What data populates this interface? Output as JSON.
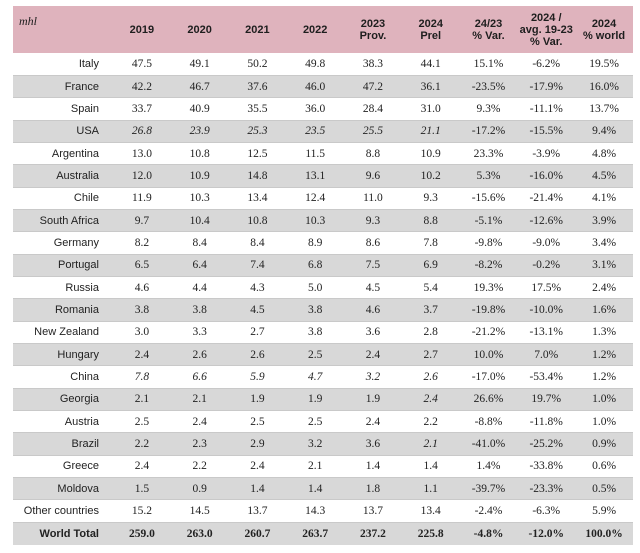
{
  "unit_label": "mhl",
  "headers": [
    "2019",
    "2020",
    "2021",
    "2022",
    "2023\nProv.",
    "2024\nPrel",
    "24/23\n% Var.",
    "2024 /\navg. 19-23\n% Var.",
    "2024\n% world"
  ],
  "rows": [
    {
      "country": "Italy",
      "values": [
        "47.5",
        "49.1",
        "50.2",
        "49.8",
        "38.3",
        "44.1",
        "15.1%",
        "-6.2%",
        "19.5%"
      ],
      "italic": []
    },
    {
      "country": "France",
      "values": [
        "42.2",
        "46.7",
        "37.6",
        "46.0",
        "47.2",
        "36.1",
        "-23.5%",
        "-17.9%",
        "16.0%"
      ],
      "italic": []
    },
    {
      "country": "Spain",
      "values": [
        "33.7",
        "40.9",
        "35.5",
        "36.0",
        "28.4",
        "31.0",
        "9.3%",
        "-11.1%",
        "13.7%"
      ],
      "italic": []
    },
    {
      "country": "USA",
      "values": [
        "26.8",
        "23.9",
        "25.3",
        "23.5",
        "25.5",
        "21.1",
        "-17.2%",
        "-15.5%",
        "9.4%"
      ],
      "italic": [
        0,
        1,
        2,
        3,
        4,
        5
      ]
    },
    {
      "country": "Argentina",
      "values": [
        "13.0",
        "10.8",
        "12.5",
        "11.5",
        "8.8",
        "10.9",
        "23.3%",
        "-3.9%",
        "4.8%"
      ],
      "italic": []
    },
    {
      "country": "Australia",
      "values": [
        "12.0",
        "10.9",
        "14.8",
        "13.1",
        "9.6",
        "10.2",
        "5.3%",
        "-16.0%",
        "4.5%"
      ],
      "italic": []
    },
    {
      "country": "Chile",
      "values": [
        "11.9",
        "10.3",
        "13.4",
        "12.4",
        "11.0",
        "9.3",
        "-15.6%",
        "-21.4%",
        "4.1%"
      ],
      "italic": []
    },
    {
      "country": "South Africa",
      "values": [
        "9.7",
        "10.4",
        "10.8",
        "10.3",
        "9.3",
        "8.8",
        "-5.1%",
        "-12.6%",
        "3.9%"
      ],
      "italic": []
    },
    {
      "country": "Germany",
      "values": [
        "8.2",
        "8.4",
        "8.4",
        "8.9",
        "8.6",
        "7.8",
        "-9.8%",
        "-9.0%",
        "3.4%"
      ],
      "italic": []
    },
    {
      "country": "Portugal",
      "values": [
        "6.5",
        "6.4",
        "7.4",
        "6.8",
        "7.5",
        "6.9",
        "-8.2%",
        "-0.2%",
        "3.1%"
      ],
      "italic": []
    },
    {
      "country": "Russia",
      "values": [
        "4.6",
        "4.4",
        "4.3",
        "5.0",
        "4.5",
        "5.4",
        "19.3%",
        "17.5%",
        "2.4%"
      ],
      "italic": []
    },
    {
      "country": "Romania",
      "values": [
        "3.8",
        "3.8",
        "4.5",
        "3.8",
        "4.6",
        "3.7",
        "-19.8%",
        "-10.0%",
        "1.6%"
      ],
      "italic": []
    },
    {
      "country": "New Zealand",
      "values": [
        "3.0",
        "3.3",
        "2.7",
        "3.8",
        "3.6",
        "2.8",
        "-21.2%",
        "-13.1%",
        "1.3%"
      ],
      "italic": []
    },
    {
      "country": "Hungary",
      "values": [
        "2.4",
        "2.6",
        "2.6",
        "2.5",
        "2.4",
        "2.7",
        "10.0%",
        "7.0%",
        "1.2%"
      ],
      "italic": []
    },
    {
      "country": "China",
      "values": [
        "7.8",
        "6.6",
        "5.9",
        "4.7",
        "3.2",
        "2.6",
        "-17.0%",
        "-53.4%",
        "1.2%"
      ],
      "italic": [
        0,
        1,
        2,
        3,
        4,
        5
      ]
    },
    {
      "country": "Georgia",
      "values": [
        "2.1",
        "2.1",
        "1.9",
        "1.9",
        "1.9",
        "2.4",
        "26.6%",
        "19.7%",
        "1.0%"
      ],
      "italic": [
        5
      ]
    },
    {
      "country": "Austria",
      "values": [
        "2.5",
        "2.4",
        "2.5",
        "2.5",
        "2.4",
        "2.2",
        "-8.8%",
        "-11.8%",
        "1.0%"
      ],
      "italic": []
    },
    {
      "country": "Brazil",
      "values": [
        "2.2",
        "2.3",
        "2.9",
        "3.2",
        "3.6",
        "2.1",
        "-41.0%",
        "-25.2%",
        "0.9%"
      ],
      "italic": [
        5
      ]
    },
    {
      "country": "Greece",
      "values": [
        "2.4",
        "2.2",
        "2.4",
        "2.1",
        "1.4",
        "1.4",
        "1.4%",
        "-33.8%",
        "0.6%"
      ],
      "italic": []
    },
    {
      "country": "Moldova",
      "values": [
        "1.5",
        "0.9",
        "1.4",
        "1.4",
        "1.8",
        "1.1",
        "-39.7%",
        "-23.3%",
        "0.5%"
      ],
      "italic": []
    },
    {
      "country": "Other countries",
      "values": [
        "15.2",
        "14.5",
        "13.7",
        "14.3",
        "13.7",
        "13.4",
        "-2.4%",
        "-6.3%",
        "5.9%"
      ],
      "italic": []
    }
  ],
  "total": {
    "country": "World Total",
    "values": [
      "259.0",
      "263.0",
      "260.7",
      "263.7",
      "237.2",
      "225.8",
      "-4.8%",
      "-12.0%",
      "100.0%"
    ]
  }
}
